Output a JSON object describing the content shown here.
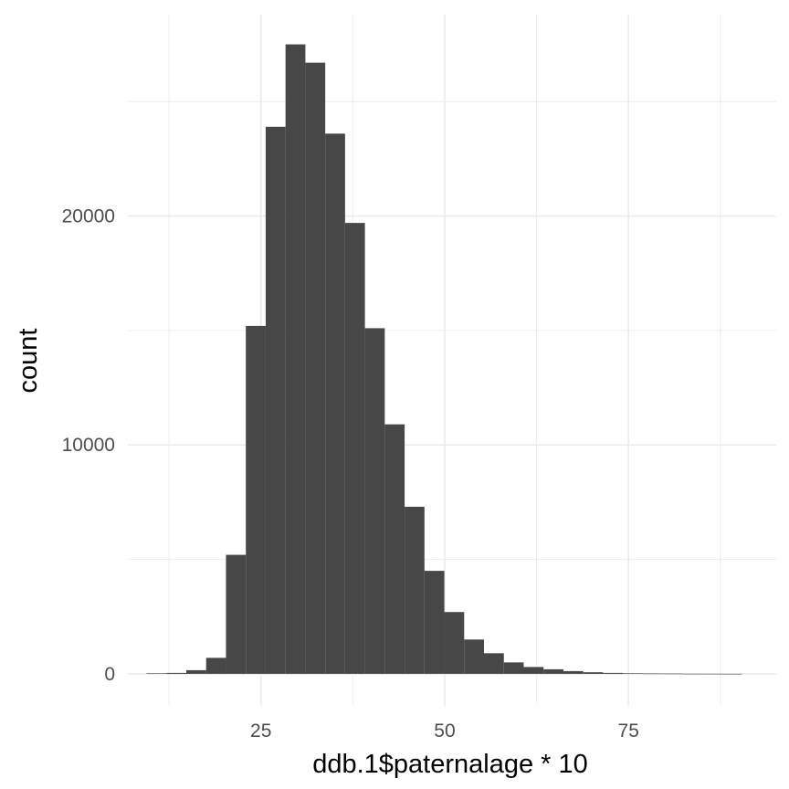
{
  "chart_data": {
    "type": "bar",
    "title": "",
    "xlabel": "ddb.1$paternalage * 10",
    "ylabel": "count",
    "grid": true,
    "legend": "none",
    "bar_color": "#474747",
    "grid_color": "#ebebeb",
    "xlim": [
      6.9,
      95.1
    ],
    "ylim": [
      -1400,
      28800
    ],
    "x_major_ticks": [
      25,
      50,
      75
    ],
    "x_minor_ticks": [
      12.5,
      37.5,
      62.5,
      87.5
    ],
    "y_major_ticks": [
      0,
      10000,
      20000
    ],
    "y_minor_ticks": [
      5000,
      15000,
      25000
    ],
    "x_tick_labels": [
      "25",
      "50",
      "75"
    ],
    "y_tick_labels": [
      "0",
      "10000",
      "20000"
    ],
    "bin_width": 2.7,
    "bin_centers": [
      10.8,
      13.5,
      16.2,
      18.9,
      21.6,
      24.3,
      27.0,
      29.7,
      32.4,
      35.1,
      37.8,
      40.5,
      43.2,
      45.9,
      48.6,
      51.3,
      54.0,
      56.7,
      59.4,
      62.1,
      64.8,
      67.5,
      70.2,
      72.9,
      75.6,
      78.3,
      81.0,
      83.7,
      86.4,
      89.1
    ],
    "values": [
      20,
      40,
      160,
      700,
      5200,
      15200,
      23900,
      27500,
      26700,
      23600,
      19700,
      15100,
      10900,
      7300,
      4500,
      2700,
      1500,
      900,
      500,
      300,
      200,
      120,
      70,
      40,
      25,
      15,
      10,
      5,
      3,
      2
    ]
  }
}
